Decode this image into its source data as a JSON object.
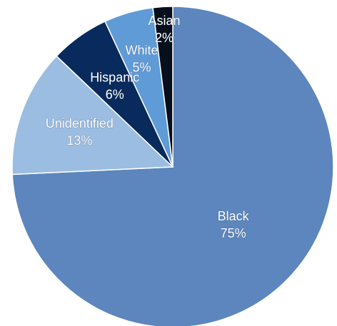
{
  "chart_data": {
    "type": "pie",
    "slices": [
      {
        "label": "Black",
        "value": 75,
        "display": "75%",
        "color": "#5c86bd"
      },
      {
        "label": "Unidentified",
        "value": 13,
        "display": "13%",
        "color": "#9cbde2"
      },
      {
        "label": "Hispanic",
        "value": 6,
        "display": "6%",
        "color": "#082a5c"
      },
      {
        "label": "White",
        "value": 5,
        "display": "5%",
        "color": "#5f9bd6"
      },
      {
        "label": "Asian",
        "value": 2,
        "display": "2%",
        "color": "#070f1c"
      }
    ],
    "labels_inside": true,
    "legend": "none"
  }
}
